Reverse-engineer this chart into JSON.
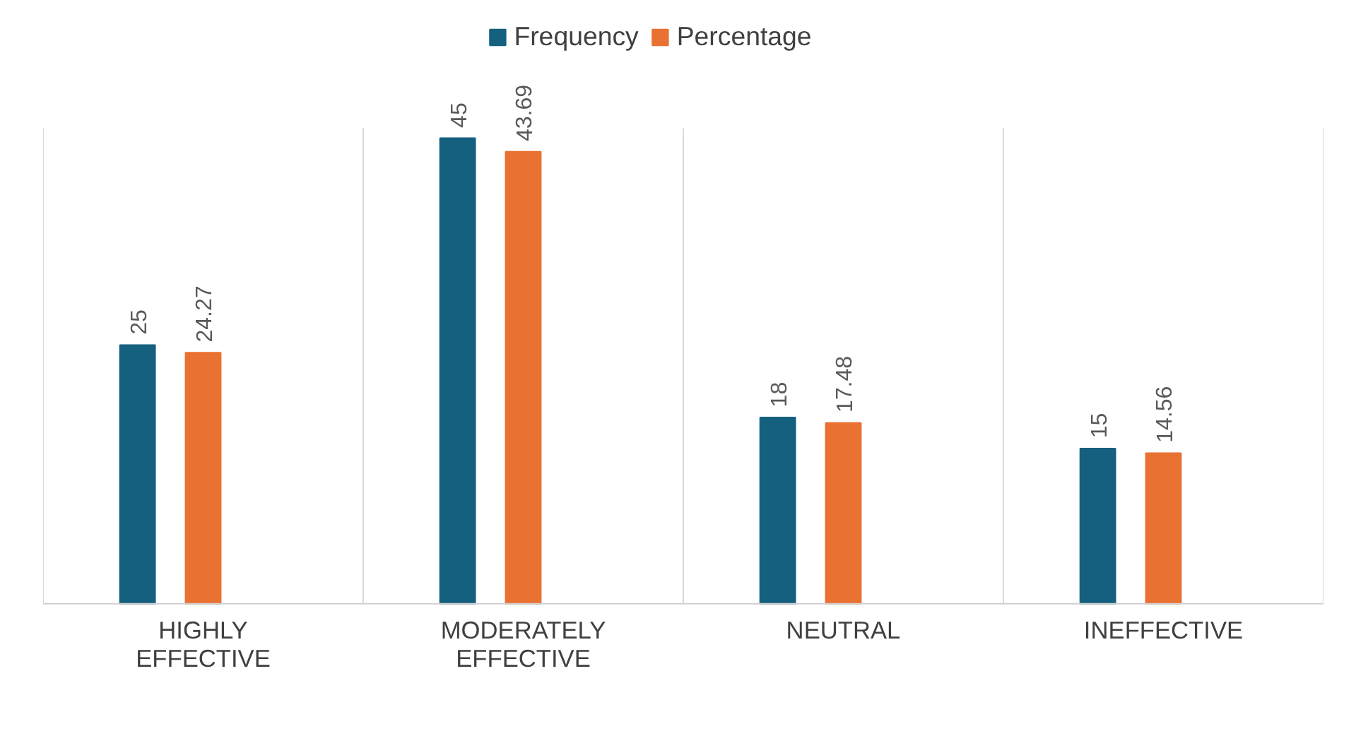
{
  "chart_data": {
    "type": "bar",
    "categories": [
      "HIGHLY EFFECTIVE",
      "MODERATELY EFFECTIVE",
      "NEUTRAL",
      "INEFFECTIVE"
    ],
    "series": [
      {
        "name": "Frequency",
        "color": "#15607f",
        "values": [
          25,
          45,
          18,
          15
        ]
      },
      {
        "name": "Percentage",
        "color": "#e97132",
        "values": [
          24.27,
          43.69,
          17.48,
          14.56
        ]
      },
      {
        "color": "#1e7a2e",
        "values": [
          null,
          null,
          null,
          null
        ]
      }
    ],
    "data_labels": true,
    "grid": "x",
    "legend": "top"
  }
}
